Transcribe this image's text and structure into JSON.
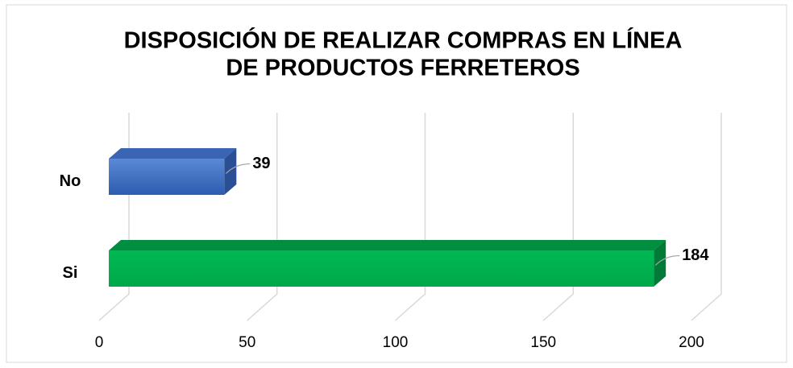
{
  "chart_data": {
    "type": "bar3d",
    "orientation": "horizontal",
    "title": [
      "DISPOSICIÓN DE REALIZAR COMPRAS EN LÍNEA",
      "DE PRODUCTOS FERRETEROS"
    ],
    "categories": [
      "No",
      "Si"
    ],
    "values": [
      39,
      184
    ],
    "colors": [
      "#4472c4",
      "#00b050"
    ],
    "xlim": [
      0,
      200
    ],
    "xticks": [
      0,
      50,
      100,
      150,
      200
    ],
    "grid": true
  }
}
